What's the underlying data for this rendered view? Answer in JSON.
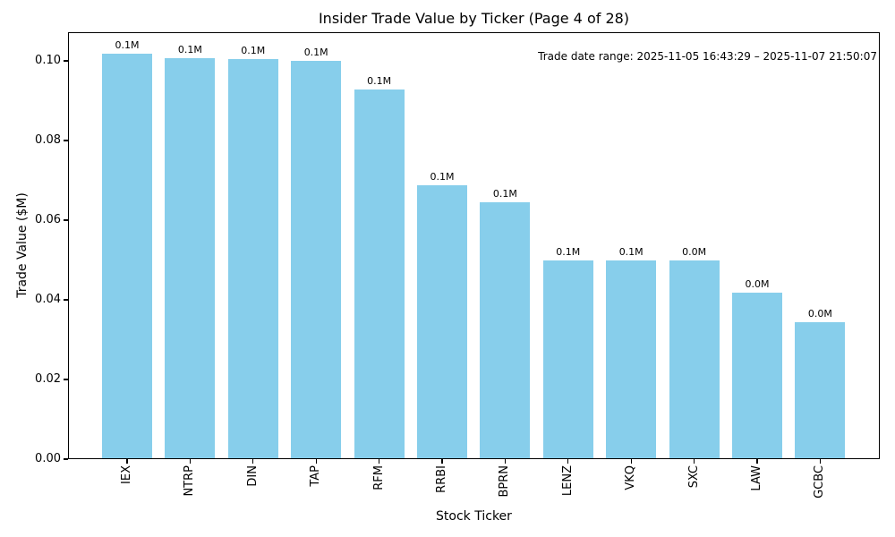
{
  "chart_data": {
    "type": "bar",
    "title": "Insider Trade Value by Ticker (Page 4 of 28)",
    "xlabel": "Stock Ticker",
    "ylabel": "Trade Value ($M)",
    "annotation": "Trade date range: 2025-11-05 16:43:29 – 2025-11-07 21:50:07",
    "categories": [
      "IEX",
      "NTRP",
      "DIN",
      "TAP",
      "RFM",
      "RRBI",
      "BPRN",
      "LENZ",
      "VKQ",
      "SXC",
      "LAW",
      "GCBC"
    ],
    "values": [
      0.1019,
      0.1007,
      0.1005,
      0.1,
      0.0928,
      0.0687,
      0.0645,
      0.05,
      0.05,
      0.0499,
      0.0419,
      0.0344
    ],
    "bar_labels": [
      "0.1M",
      "0.1M",
      "0.1M",
      "0.1M",
      "0.1M",
      "0.1M",
      "0.1M",
      "0.1M",
      "0.1M",
      "0.0M",
      "0.0M",
      "0.0M"
    ],
    "yticks": [
      0.0,
      0.02,
      0.04,
      0.06,
      0.08,
      0.1
    ],
    "ytick_labels": [
      "0.00",
      "0.02",
      "0.04",
      "0.06",
      "0.08",
      "0.10"
    ],
    "ylim": [
      0.0,
      0.107
    ],
    "bar_color": "#87CEEB",
    "grid": false,
    "legend": null,
    "background": "#ffffff",
    "text_color": "#000000"
  }
}
